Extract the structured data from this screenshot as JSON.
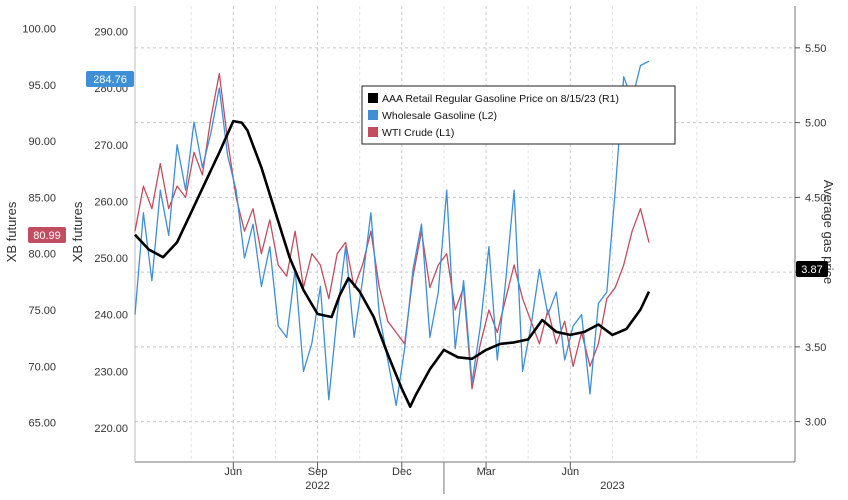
{
  "chart_data": {
    "type": "line",
    "axes": {
      "wti": {
        "label": "XB futures",
        "ticks": [
          65,
          70,
          75,
          80,
          85,
          90,
          95,
          100
        ],
        "tick_labels": [
          "65.00",
          "70.00",
          "75.00",
          "80.00",
          "85.00",
          "90.00",
          "95.00",
          "100.00"
        ],
        "range": [
          61.5,
          102.0
        ]
      },
      "xb": {
        "label": "XB futures",
        "ticks": [
          220,
          230,
          240,
          250,
          260,
          270,
          280,
          290
        ],
        "tick_labels": [
          "220.00",
          "230.00",
          "240.00",
          "250.00",
          "260.00",
          "270.00",
          "280.00",
          "290.00"
        ],
        "range": [
          214.0,
          294.5
        ]
      },
      "gas": {
        "label": "Average gas price",
        "ticks": [
          3.0,
          3.5,
          4.0,
          4.5,
          5.0,
          5.5
        ],
        "tick_labels": [
          "3.00",
          "3.50",
          "4.00",
          "4.50",
          "5.00",
          "5.50"
        ],
        "range": [
          2.73,
          5.78
        ]
      }
    },
    "x_axis": {
      "range": [
        0,
        23.5
      ],
      "month_ticks": [
        {
          "label": "Jun",
          "x": 3.5
        },
        {
          "label": "Sep",
          "x": 6.5
        },
        {
          "label": "Dec",
          "x": 9.5
        },
        {
          "label": "Mar",
          "x": 12.5
        },
        {
          "label": "Jun",
          "x": 15.5
        }
      ],
      "year_labels": [
        {
          "label": "2022",
          "x": 6.5
        },
        {
          "label": "2023",
          "x": 17.0
        }
      ],
      "year_divider": 11.0
    },
    "grid": true,
    "legend": {
      "placement": "top-center",
      "entries": [
        {
          "label": "AAA Retail Regular Gasoline Price on 8/15/23 (R1)",
          "color": "#000000"
        },
        {
          "label": "Wholesale Gasoline (L2)",
          "color": "#3e8fd6"
        },
        {
          "label": "WTI Crude (L1)",
          "color": "#c04e60"
        }
      ]
    },
    "last_value_labels": {
      "wti": "80.99",
      "xb": "284.76",
      "gas": "3.87"
    },
    "series": [
      {
        "name": "AAA Retail Regular Gasoline Price on 8/15/23 (R1)",
        "axis": "gas",
        "color": "#000000",
        "x": [
          0.0,
          0.5,
          1.0,
          1.5,
          2.0,
          2.5,
          3.0,
          3.5,
          3.8,
          4.0,
          4.5,
          5.0,
          5.5,
          6.0,
          6.5,
          7.0,
          7.3,
          7.6,
          8.0,
          8.5,
          9.0,
          9.5,
          9.8,
          10.0,
          10.5,
          11.0,
          11.5,
          12.0,
          12.5,
          13.0,
          13.5,
          14.0,
          14.5,
          15.0,
          15.5,
          16.0,
          16.5,
          17.0,
          17.5,
          18.0,
          18.3
        ],
        "values": [
          4.25,
          4.15,
          4.1,
          4.2,
          4.4,
          4.6,
          4.8,
          5.01,
          5.0,
          4.95,
          4.7,
          4.4,
          4.1,
          3.88,
          3.72,
          3.7,
          3.85,
          3.96,
          3.87,
          3.7,
          3.45,
          3.22,
          3.1,
          3.18,
          3.35,
          3.48,
          3.43,
          3.42,
          3.48,
          3.52,
          3.53,
          3.55,
          3.68,
          3.6,
          3.58,
          3.6,
          3.65,
          3.58,
          3.62,
          3.75,
          3.87
        ]
      },
      {
        "name": "Wholesale Gasoline (L2)",
        "axis": "xb",
        "color": "#3e8fd6",
        "x": [
          0.0,
          0.3,
          0.6,
          0.9,
          1.2,
          1.5,
          1.8,
          2.1,
          2.4,
          2.7,
          3.0,
          3.3,
          3.6,
          3.9,
          4.2,
          4.5,
          4.8,
          5.1,
          5.4,
          5.7,
          6.0,
          6.3,
          6.6,
          6.9,
          7.2,
          7.5,
          7.8,
          8.1,
          8.4,
          8.7,
          9.0,
          9.3,
          9.6,
          9.9,
          10.2,
          10.5,
          10.8,
          11.1,
          11.4,
          11.7,
          12.0,
          12.3,
          12.6,
          12.9,
          13.2,
          13.5,
          13.8,
          14.1,
          14.4,
          14.7,
          15.0,
          15.3,
          15.6,
          15.9,
          16.2,
          16.5,
          16.8,
          17.1,
          17.4,
          17.7,
          18.0,
          18.3
        ],
        "values": [
          240,
          258,
          246,
          262,
          254,
          270,
          262,
          274,
          266,
          272,
          280,
          268,
          262,
          250,
          256,
          245,
          252,
          238,
          236,
          248,
          230,
          235,
          245,
          225,
          240,
          252,
          236,
          246,
          258,
          240,
          232,
          224,
          234,
          248,
          256,
          236,
          244,
          262,
          234,
          246,
          228,
          238,
          252,
          232,
          246,
          262,
          230,
          238,
          248,
          240,
          244,
          232,
          238,
          240,
          226,
          242,
          244,
          262,
          282,
          278,
          284,
          284.76
        ]
      },
      {
        "name": "WTI Crude (L1)",
        "axis": "wti",
        "color": "#c04e60",
        "x": [
          0.0,
          0.3,
          0.6,
          0.9,
          1.2,
          1.5,
          1.8,
          2.1,
          2.4,
          2.7,
          3.0,
          3.3,
          3.6,
          3.9,
          4.2,
          4.5,
          4.8,
          5.1,
          5.4,
          5.7,
          6.0,
          6.3,
          6.6,
          6.9,
          7.2,
          7.5,
          7.8,
          8.1,
          8.4,
          8.7,
          9.0,
          9.3,
          9.6,
          9.9,
          10.2,
          10.5,
          10.8,
          11.1,
          11.4,
          11.7,
          12.0,
          12.3,
          12.6,
          12.9,
          13.2,
          13.5,
          13.8,
          14.1,
          14.4,
          14.7,
          15.0,
          15.3,
          15.6,
          15.9,
          16.2,
          16.5,
          16.8,
          17.1,
          17.4,
          17.7,
          18.0,
          18.3
        ],
        "values": [
          82,
          86,
          84,
          88,
          84,
          86,
          85,
          89,
          87,
          92,
          96,
          90,
          85,
          82,
          84,
          80,
          83,
          79,
          78,
          82,
          77,
          80,
          79,
          76,
          80,
          81,
          77,
          79,
          82,
          77,
          74,
          73,
          72,
          78,
          82,
          77,
          79,
          80,
          75,
          77,
          68,
          72,
          75,
          73,
          76,
          79,
          76,
          74,
          72,
          75,
          72,
          74,
          70,
          73,
          70,
          72,
          76,
          77,
          79,
          82,
          84,
          80.99
        ]
      }
    ]
  }
}
